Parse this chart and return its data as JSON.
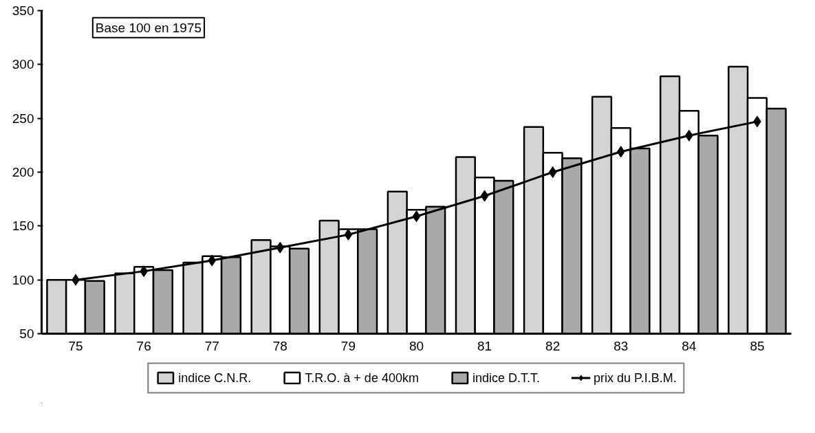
{
  "chart_data": {
    "type": "bar",
    "categories": [
      "75",
      "76",
      "77",
      "78",
      "79",
      "80",
      "81",
      "82",
      "83",
      "84",
      "85"
    ],
    "series": [
      {
        "name": "indice C.N.R.",
        "color": "#d4d4d4",
        "values": [
          100,
          106,
          116,
          137,
          155,
          182,
          214,
          242,
          270,
          289,
          298
        ]
      },
      {
        "name": "T.R.O. à + de 400km",
        "color": "#ffffff",
        "values": [
          100,
          112,
          122,
          131,
          147,
          165,
          195,
          218,
          241,
          257,
          269
        ]
      },
      {
        "name": "indice D.T.T.",
        "color": "#a9a9a9",
        "values": [
          99,
          109,
          121,
          129,
          147,
          168,
          192,
          213,
          222,
          234,
          259
        ]
      },
      {
        "name": "prix du P.I.B.M.",
        "type": "line",
        "color": "#000000",
        "marker": "diamond",
        "values": [
          100,
          108,
          118,
          130,
          142,
          159,
          178,
          200,
          219,
          234,
          247
        ]
      }
    ],
    "ylim": [
      50,
      350
    ],
    "yticks": [
      50,
      100,
      150,
      200,
      250,
      300,
      350
    ],
    "grid": false,
    "legend": "bottom",
    "annotations": [
      "Base 100 en 1975"
    ]
  }
}
